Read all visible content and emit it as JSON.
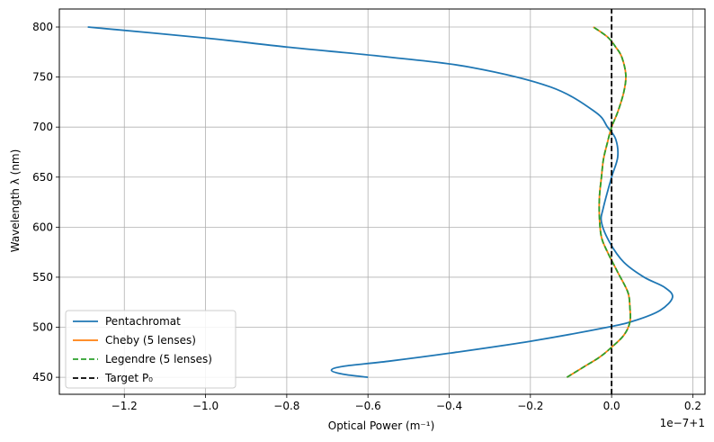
{
  "chart_data": {
    "type": "line",
    "title": "",
    "xlabel": "Optical Power (m⁻¹)",
    "ylabel": "Wavelength λ (nm)",
    "x_offset_label": "1e−7+1",
    "xlim": [
      -1.36,
      0.23
    ],
    "ylim": [
      433,
      818
    ],
    "x_ticks": [
      -1.2,
      -1.0,
      -0.8,
      -0.6,
      -0.4,
      -0.2,
      0.0,
      0.2
    ],
    "x_tick_labels": [
      "−1.2",
      "−1.0",
      "−0.8",
      "−0.6",
      "−0.4",
      "−0.2",
      "0.0",
      "0.2"
    ],
    "y_ticks": [
      450,
      500,
      550,
      600,
      650,
      700,
      750,
      800
    ],
    "y_tick_labels": [
      "450",
      "500",
      "550",
      "600",
      "650",
      "700",
      "750",
      "800"
    ],
    "grid": true,
    "legend_position": "lower-left",
    "series": [
      {
        "name": "Pentachromat",
        "color": "#1f77b4",
        "dash": "solid",
        "points": [
          [
            -0.6,
            450
          ],
          [
            -0.66,
            453
          ],
          [
            -0.69,
            457
          ],
          [
            -0.66,
            461
          ],
          [
            -0.55,
            466
          ],
          [
            -0.4,
            474
          ],
          [
            -0.2,
            486
          ],
          [
            -0.01,
            500
          ],
          [
            0.06,
            507
          ],
          [
            0.12,
            517
          ],
          [
            0.15,
            530
          ],
          [
            0.13,
            540
          ],
          [
            0.08,
            550
          ],
          [
            0.03,
            565
          ],
          [
            -0.005,
            585
          ],
          [
            -0.025,
            605
          ],
          [
            -0.02,
            620
          ],
          [
            0.0,
            650
          ],
          [
            0.015,
            670
          ],
          [
            0.01,
            688
          ],
          [
            -0.01,
            700
          ],
          [
            -0.04,
            715
          ],
          [
            -0.15,
            740
          ],
          [
            -0.35,
            760
          ],
          [
            -0.55,
            770
          ],
          [
            -0.8,
            780
          ],
          [
            -1.0,
            789
          ],
          [
            -1.29,
            800
          ]
        ]
      },
      {
        "name": "Cheby (5 lenses)",
        "color": "#ff7f0e",
        "dash": "solid",
        "points": [
          [
            -0.11,
            450
          ],
          [
            -0.07,
            460
          ],
          [
            -0.03,
            470
          ],
          [
            0.0,
            480
          ],
          [
            0.03,
            492
          ],
          [
            0.045,
            505
          ],
          [
            0.045,
            520
          ],
          [
            0.04,
            535
          ],
          [
            0.015,
            555
          ],
          [
            -0.01,
            575
          ],
          [
            -0.025,
            590
          ],
          [
            -0.03,
            610
          ],
          [
            -0.03,
            630
          ],
          [
            -0.025,
            650
          ],
          [
            -0.02,
            668
          ],
          [
            -0.01,
            685
          ],
          [
            0.0,
            700
          ],
          [
            0.015,
            715
          ],
          [
            0.03,
            735
          ],
          [
            0.035,
            752
          ],
          [
            0.025,
            770
          ],
          [
            0.01,
            780
          ],
          [
            -0.01,
            790
          ],
          [
            -0.045,
            800
          ]
        ]
      },
      {
        "name": "Legendre (5 lenses)",
        "color": "#2ca02c",
        "dash": "dashed",
        "points": [
          [
            -0.11,
            450
          ],
          [
            -0.07,
            460
          ],
          [
            -0.03,
            470
          ],
          [
            0.0,
            480
          ],
          [
            0.03,
            492
          ],
          [
            0.045,
            505
          ],
          [
            0.045,
            520
          ],
          [
            0.04,
            535
          ],
          [
            0.015,
            555
          ],
          [
            -0.01,
            575
          ],
          [
            -0.025,
            590
          ],
          [
            -0.03,
            610
          ],
          [
            -0.03,
            630
          ],
          [
            -0.025,
            650
          ],
          [
            -0.02,
            668
          ],
          [
            -0.01,
            685
          ],
          [
            0.0,
            700
          ],
          [
            0.015,
            715
          ],
          [
            0.03,
            735
          ],
          [
            0.035,
            752
          ],
          [
            0.025,
            770
          ],
          [
            0.01,
            780
          ],
          [
            -0.01,
            790
          ],
          [
            -0.045,
            800
          ]
        ]
      },
      {
        "name": "Target P₀",
        "color": "#000000",
        "dash": "dashed",
        "points": [
          [
            0.0,
            433
          ],
          [
            0.0,
            818
          ]
        ]
      }
    ]
  }
}
